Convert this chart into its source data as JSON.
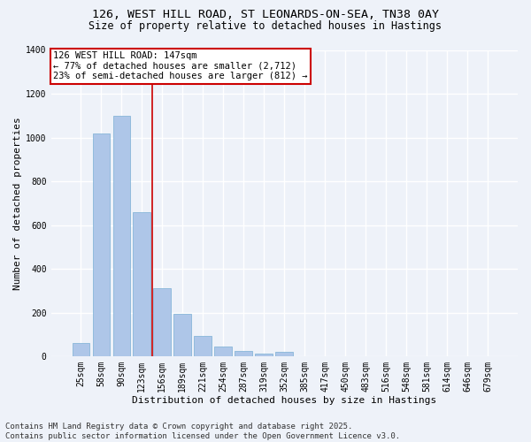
{
  "title_line1": "126, WEST HILL ROAD, ST LEONARDS-ON-SEA, TN38 0AY",
  "title_line2": "Size of property relative to detached houses in Hastings",
  "xlabel": "Distribution of detached houses by size in Hastings",
  "ylabel": "Number of detached properties",
  "categories": [
    "25sqm",
    "58sqm",
    "90sqm",
    "123sqm",
    "156sqm",
    "189sqm",
    "221sqm",
    "254sqm",
    "287sqm",
    "319sqm",
    "352sqm",
    "385sqm",
    "417sqm",
    "450sqm",
    "483sqm",
    "516sqm",
    "548sqm",
    "581sqm",
    "614sqm",
    "646sqm",
    "679sqm"
  ],
  "values": [
    60,
    1020,
    1100,
    660,
    310,
    195,
    95,
    45,
    25,
    15,
    20,
    0,
    0,
    0,
    0,
    0,
    0,
    0,
    0,
    0,
    0
  ],
  "bar_color": "#aec6e8",
  "bar_edge_color": "#7aafd4",
  "background_color": "#eef2f9",
  "grid_color": "#ffffff",
  "annotation_text": "126 WEST HILL ROAD: 147sqm\n← 77% of detached houses are smaller (2,712)\n23% of semi-detached houses are larger (812) →",
  "vline_x": 3.5,
  "vline_color": "#cc0000",
  "box_edge_color": "#cc0000",
  "ylim": [
    0,
    1400
  ],
  "yticks": [
    0,
    200,
    400,
    600,
    800,
    1000,
    1200,
    1400
  ],
  "footer_line1": "Contains HM Land Registry data © Crown copyright and database right 2025.",
  "footer_line2": "Contains public sector information licensed under the Open Government Licence v3.0.",
  "title_fontsize": 9.5,
  "subtitle_fontsize": 8.5,
  "axis_label_fontsize": 8,
  "tick_fontsize": 7,
  "annotation_fontsize": 7.5,
  "footer_fontsize": 6.5
}
